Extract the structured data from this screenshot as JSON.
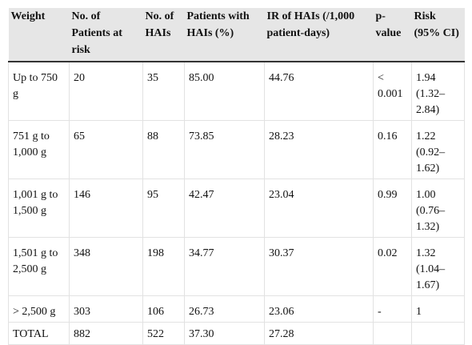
{
  "table": {
    "header": [
      "Weight",
      "No. of Patients at risk",
      "No. of HAIs",
      "Patients with HAIs (%)",
      "IR of HAIs (/1,000 patient-days)",
      "p-value",
      "Risk (95% CI)"
    ],
    "rows": [
      [
        "Up to 750 g",
        "20",
        "35",
        "85.00",
        "44.76",
        "< 0.001",
        "1.94 (1.32–2.84)"
      ],
      [
        "751 g to 1,000 g",
        "65",
        "88",
        "73.85",
        "28.23",
        "0.16",
        "1.22 (0.92–1.62)"
      ],
      [
        "1,001 g to 1,500 g",
        "146",
        "95",
        "42.47",
        "23.04",
        "0.99",
        "1.00 (0.76–1.32)"
      ],
      [
        "1,501 g to 2,500 g",
        "348",
        "198",
        "34.77",
        "30.37",
        "0.02",
        "1.32 (1.04–1.67)"
      ],
      [
        "> 2,500 g",
        "303",
        "106",
        "26.73",
        "23.06",
        "-",
        "1"
      ],
      [
        "TOTAL",
        "882",
        "522",
        "37.30",
        "27.28",
        null,
        null
      ]
    ]
  }
}
